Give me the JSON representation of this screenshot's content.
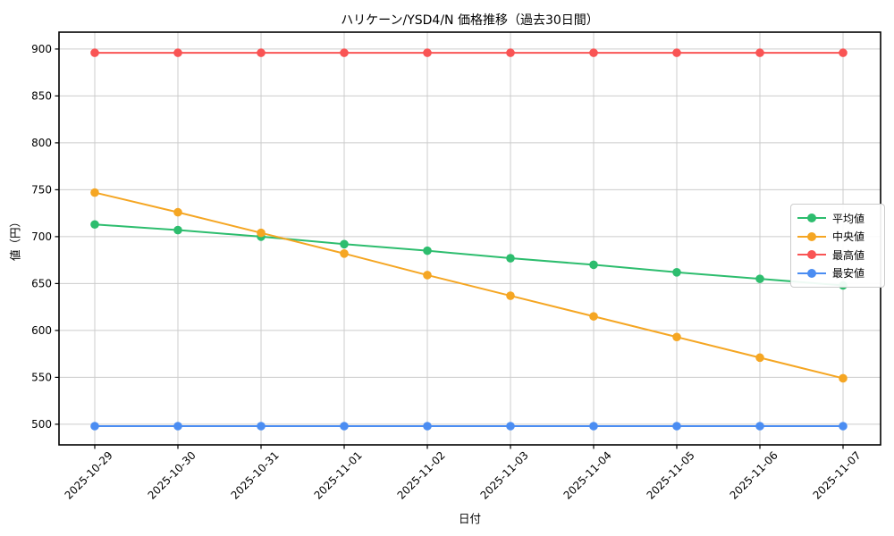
{
  "chart_data": {
    "type": "line",
    "title": "ハリケーン/YSD4/N 価格推移（過去30日間）",
    "xlabel": "日付",
    "ylabel": "値（円）",
    "categories": [
      "2025-10-29",
      "2025-10-30",
      "2025-10-31",
      "2025-11-01",
      "2025-11-02",
      "2025-11-03",
      "2025-11-04",
      "2025-11-05",
      "2025-11-06",
      "2025-11-07"
    ],
    "series": [
      {
        "name": "平均値",
        "color": "#2dbd6e",
        "values": [
          713,
          707,
          700,
          692,
          685,
          677,
          670,
          662,
          655,
          648
        ]
      },
      {
        "name": "中央値",
        "color": "#f5a623",
        "values": [
          747,
          726,
          704,
          682,
          659,
          637,
          615,
          593,
          571,
          549
        ]
      },
      {
        "name": "最高値",
        "color": "#f95454",
        "values": [
          896,
          896,
          896,
          896,
          896,
          896,
          896,
          896,
          896,
          896
        ]
      },
      {
        "name": "最安値",
        "color": "#4b8df2",
        "values": [
          498,
          498,
          498,
          498,
          498,
          498,
          498,
          498,
          498,
          498
        ]
      }
    ],
    "ylim": [
      478,
      918
    ],
    "yticks": [
      500,
      550,
      600,
      650,
      700,
      750,
      800,
      850,
      900
    ],
    "grid": true,
    "legend_position": "upper right inside",
    "grid_color": "#cccccc",
    "spine_color": "#000000"
  }
}
